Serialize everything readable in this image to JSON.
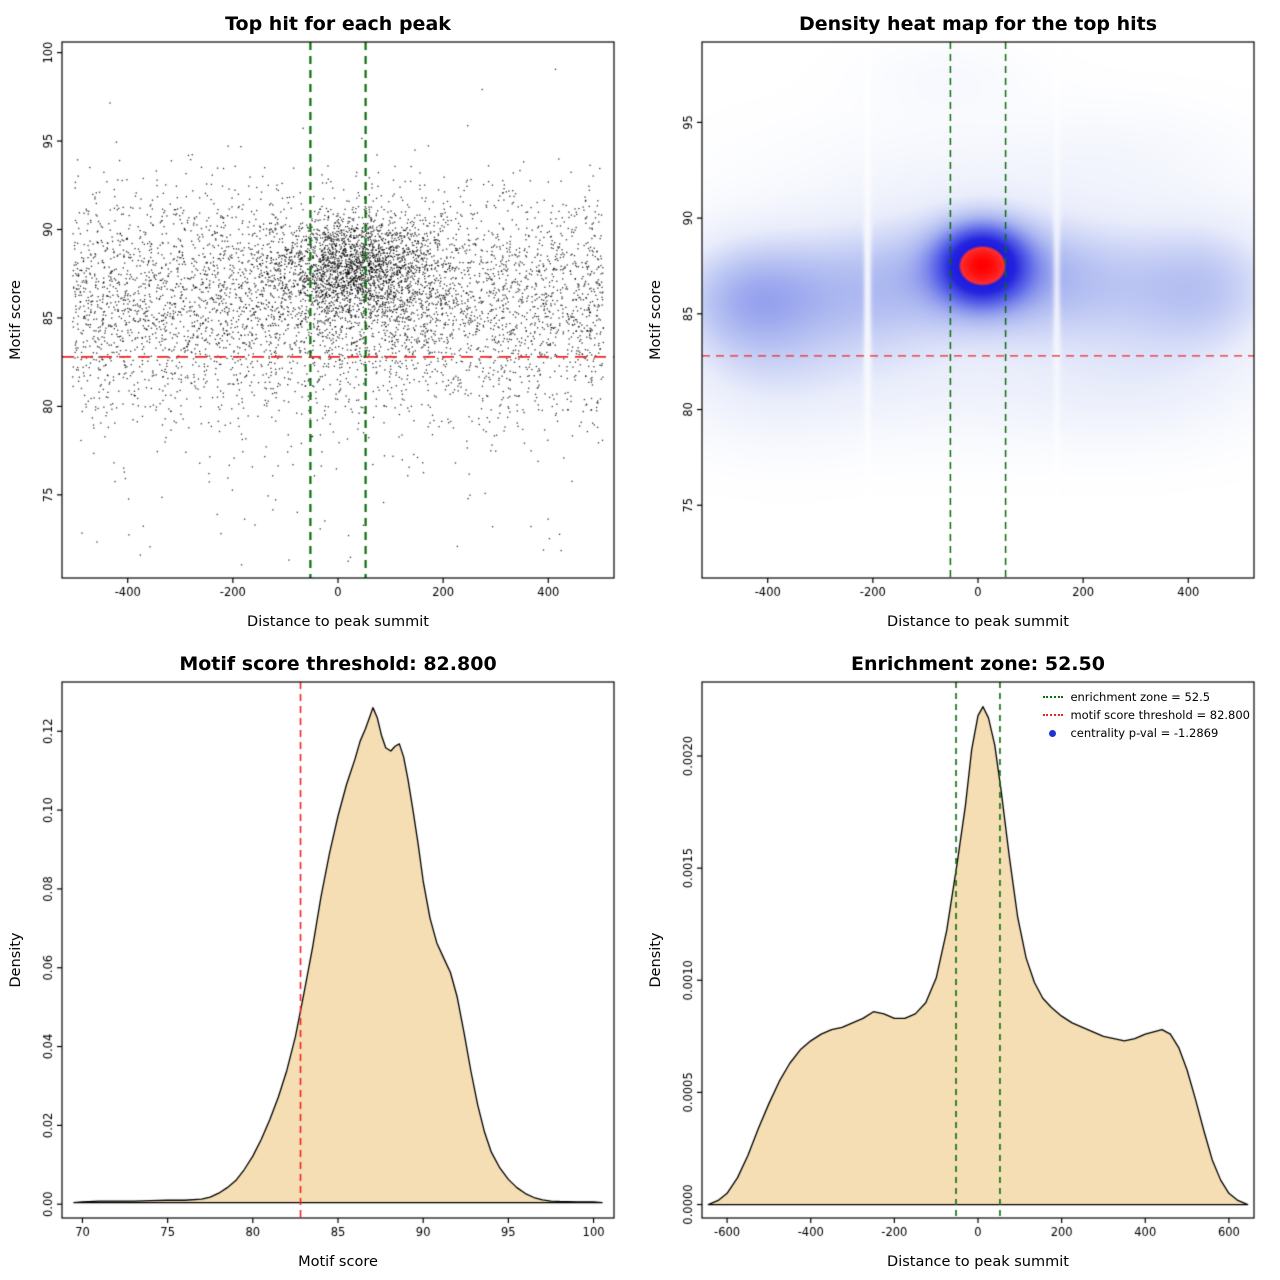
{
  "figure": {
    "background": "#ffffff"
  },
  "chart_data": [
    {
      "type": "scatter",
      "title": "Top hit for each peak",
      "xlabel": "Distance to peak summit",
      "ylabel": "Motif score",
      "xlim": [
        -525,
        525
      ],
      "ylim": [
        70.3,
        100.6
      ],
      "xticks": {
        "values": [
          -400,
          -200,
          0,
          200,
          400
        ],
        "labels": [
          "-400",
          "-200",
          "0",
          "200",
          "400"
        ]
      },
      "yticks": {
        "values": [
          75,
          80,
          85,
          90,
          95,
          100
        ],
        "labels": [
          "75",
          "80",
          "85",
          "90",
          "95",
          "100"
        ]
      },
      "seed": 42,
      "point_color": "#000000",
      "point_size": 1.3,
      "groups": [
        {
          "n": 4200,
          "x": {
            "dist": "uniform",
            "min": -505,
            "max": 505
          },
          "y": {
            "dist": "normal",
            "mean": 86.2,
            "sd": 3.0
          }
        },
        {
          "n": 1400,
          "x": {
            "dist": "normal",
            "mean": 35,
            "sd": 70
          },
          "y": {
            "dist": "normal",
            "mean": 88.0,
            "sd": 1.4
          }
        },
        {
          "n": 800,
          "x": {
            "dist": "normal",
            "mean": 15,
            "sd": 130
          },
          "y": {
            "dist": "normal",
            "mean": 87.2,
            "sd": 2.0
          }
        },
        {
          "n": 420,
          "x": {
            "dist": "uniform",
            "min": -505,
            "max": 505
          },
          "y": {
            "dist": "normal",
            "mean": 81.5,
            "sd": 2.2
          }
        },
        {
          "n": 60,
          "x": {
            "dist": "uniform",
            "min": -490,
            "max": 490
          },
          "y": {
            "dist": "uniform",
            "min": 71,
            "max": 78.5
          }
        }
      ],
      "vlines": [
        {
          "x": -52.5,
          "color": "#0b6e0b",
          "width": 2.2,
          "dash": [
            8,
            6
          ]
        },
        {
          "x": 52.5,
          "color": "#0b6e0b",
          "width": 2.2,
          "dash": [
            8,
            6
          ]
        }
      ],
      "hlines": [
        {
          "y": 82.8,
          "color": "#ee2525",
          "width": 1.8,
          "dash": [
            12,
            7
          ]
        }
      ]
    },
    {
      "type": "heatmap",
      "title": "Density heat map for the top hits",
      "xlabel": "Distance to peak summit",
      "ylabel": "Motif score",
      "xlim": [
        -525,
        525
      ],
      "ylim": [
        71.2,
        99.2
      ],
      "xticks": {
        "values": [
          -400,
          -200,
          0,
          200,
          400
        ],
        "labels": [
          "-400",
          "-200",
          "0",
          "200",
          "400"
        ]
      },
      "yticks": {
        "values": [
          75,
          80,
          85,
          90,
          95
        ],
        "labels": [
          "75",
          "80",
          "85",
          "90",
          "95"
        ]
      },
      "kernels": [
        {
          "w": 1.4,
          "cx": 8,
          "cy": 87.6,
          "sx": 55,
          "sy": 1.35
        },
        {
          "w": 0.55,
          "cx": 5,
          "cy": 87.2,
          "sx": 105,
          "sy": 2.3
        },
        {
          "w": 0.38,
          "cx": -360,
          "cy": 86.0,
          "sx": 120,
          "sy": 2.6
        },
        {
          "w": 0.38,
          "cx": -180,
          "cy": 86.5,
          "sx": 110,
          "sy": 2.8
        },
        {
          "w": 0.38,
          "cx": 170,
          "cy": 86.8,
          "sx": 110,
          "sy": 2.6
        },
        {
          "w": 0.38,
          "cx": 380,
          "cy": 86.3,
          "sx": 120,
          "sy": 2.8
        },
        {
          "w": 0.22,
          "cx": -500,
          "cy": 85.8,
          "sx": 100,
          "sy": 2.4
        },
        {
          "w": 0.22,
          "cx": 480,
          "cy": 86.5,
          "sx": 100,
          "sy": 2.6
        },
        {
          "w": 0.2,
          "cx": -430,
          "cy": 85.5,
          "sx": 90,
          "sy": 2.4
        },
        {
          "w": 0.16,
          "cx": -60,
          "cy": 81.3,
          "sx": 320,
          "sy": 2.3
        },
        {
          "w": 0.12,
          "cx": -400,
          "cy": 80.8,
          "sx": 130,
          "sy": 2.2
        },
        {
          "w": 0.12,
          "cx": 300,
          "cy": 80.8,
          "sx": 160,
          "sy": 2.0
        },
        {
          "w": 0.1,
          "cx": -20,
          "cy": 92.8,
          "sx": 260,
          "sy": 2.0
        },
        {
          "w": 0.09,
          "cx": -60,
          "cy": 97.3,
          "sx": 110,
          "sy": 1.4
        },
        {
          "w": 0.07,
          "cx": 300,
          "cy": 93.5,
          "sx": 150,
          "sy": 1.8
        }
      ],
      "colormap": [
        [
          0.0,
          "#ffffff"
        ],
        [
          0.13,
          "#e9edfb"
        ],
        [
          0.3,
          "#aab6f0"
        ],
        [
          0.5,
          "#5a64e8"
        ],
        [
          0.68,
          "#2525dd"
        ],
        [
          0.8,
          "#1c1ce0"
        ],
        [
          0.84,
          "#ff2e2e"
        ],
        [
          1.0,
          "#ff0000"
        ]
      ],
      "stripes": [
        {
          "x": -210,
          "sd": 5,
          "strength": 0.7
        },
        {
          "x": 150,
          "sd": 5,
          "strength": 0.55
        }
      ],
      "vlines": [
        {
          "x": -52.5,
          "color": "#0b6e0b",
          "width": 1.5,
          "dash": [
            7,
            5
          ]
        },
        {
          "x": 52.5,
          "color": "#0b6e0b",
          "width": 1.5,
          "dash": [
            7,
            5
          ]
        }
      ],
      "hlines": [
        {
          "y": 82.8,
          "color": "#ee2525",
          "width": 1.3,
          "dash": [
            8,
            6
          ]
        }
      ]
    },
    {
      "type": "area",
      "title": "Motif score threshold: 82.800",
      "xlabel": "Motif score",
      "ylabel": "Density",
      "xlim": [
        68.8,
        101.2
      ],
      "ylim": [
        -0.0035,
        0.1325
      ],
      "xticks": {
        "values": [
          70,
          75,
          80,
          85,
          90,
          95,
          100
        ],
        "labels": [
          "70",
          "75",
          "80",
          "85",
          "90",
          "95",
          "100"
        ]
      },
      "yticks": {
        "values": [
          0,
          0.02,
          0.04,
          0.06,
          0.08,
          0.1,
          0.12
        ],
        "labels": [
          "0.00",
          "0.02",
          "0.04",
          "0.06",
          "0.08",
          "0.10",
          "0.12"
        ]
      },
      "fill": "#f5deb3",
      "stroke": "#000000",
      "x": [
        69.5,
        70,
        71,
        72,
        73,
        74,
        75,
        76,
        77,
        77.5,
        78,
        78.5,
        79,
        79.5,
        80,
        80.5,
        81,
        81.5,
        82,
        82.5,
        83,
        83.5,
        84,
        84.5,
        85,
        85.5,
        86,
        86.3,
        86.6,
        86.85,
        87.05,
        87.3,
        87.55,
        87.8,
        88.1,
        88.35,
        88.6,
        88.85,
        89.1,
        89.4,
        89.7,
        90,
        90.4,
        90.8,
        91.2,
        91.6,
        92,
        92.4,
        92.8,
        93.2,
        93.6,
        94,
        94.5,
        95,
        95.5,
        96,
        96.5,
        97,
        97.5,
        98,
        99,
        100,
        100.5
      ],
      "y": [
        0.0004,
        0.0006,
        0.0008,
        0.0008,
        0.0008,
        0.0009,
        0.001,
        0.001,
        0.0013,
        0.0018,
        0.0028,
        0.0042,
        0.006,
        0.0088,
        0.0122,
        0.0165,
        0.0215,
        0.0272,
        0.034,
        0.0425,
        0.0535,
        0.065,
        0.078,
        0.089,
        0.0985,
        0.1065,
        0.113,
        0.1175,
        0.1205,
        0.1235,
        0.126,
        0.1235,
        0.119,
        0.1158,
        0.115,
        0.1162,
        0.1168,
        0.1135,
        0.108,
        0.1,
        0.0915,
        0.082,
        0.0726,
        0.0663,
        0.0625,
        0.0588,
        0.0525,
        0.0435,
        0.0338,
        0.0252,
        0.0183,
        0.0132,
        0.0092,
        0.0063,
        0.0042,
        0.0027,
        0.0017,
        0.0011,
        0.0008,
        0.0007,
        0.0006,
        0.0006,
        0.0004
      ],
      "vlines": [
        {
          "x": 82.8,
          "color": "#ee2525",
          "width": 1.6,
          "dash": [
            7,
            5
          ]
        }
      ]
    },
    {
      "type": "area",
      "title": "Enrichment zone: 52.50",
      "xlabel": "Distance to peak summit",
      "ylabel": "Density",
      "xlim": [
        -660,
        660
      ],
      "ylim": [
        -6e-05,
        0.00233
      ],
      "xticks": {
        "values": [
          -600,
          -400,
          -200,
          0,
          200,
          400,
          600
        ],
        "labels": [
          "-600",
          "-400",
          "-200",
          "0",
          "200",
          "400",
          "600"
        ]
      },
      "yticks": {
        "values": [
          0,
          0.0005,
          0.001,
          0.0015,
          0.002
        ],
        "labels": [
          "0.0000",
          "0.0005",
          "0.0010",
          "0.0015",
          "0.0020"
        ]
      },
      "fill": "#f5deb3",
      "stroke": "#000000",
      "x": [
        -645,
        -620,
        -600,
        -575,
        -550,
        -525,
        -500,
        -475,
        -450,
        -425,
        -400,
        -375,
        -350,
        -325,
        -300,
        -275,
        -250,
        -225,
        -200,
        -175,
        -150,
        -125,
        -100,
        -75,
        -50,
        -30,
        -15,
        0,
        12,
        25,
        40,
        55,
        75,
        95,
        115,
        135,
        155,
        175,
        200,
        225,
        250,
        275,
        300,
        325,
        350,
        375,
        400,
        420,
        440,
        460,
        480,
        500,
        520,
        540,
        560,
        580,
        600,
        620,
        645
      ],
      "y": [
        0,
        2e-05,
        5e-05,
        0.00012,
        0.00022,
        0.00034,
        0.00045,
        0.00055,
        0.00063,
        0.00069,
        0.00073,
        0.00076,
        0.00078,
        0.00079,
        0.00081,
        0.00083,
        0.00086,
        0.00085,
        0.00083,
        0.00083,
        0.00085,
        0.0009,
        0.00101,
        0.00122,
        0.00152,
        0.00178,
        0.00203,
        0.00218,
        0.00222,
        0.00217,
        0.00205,
        0.00185,
        0.00155,
        0.00128,
        0.0011,
        0.00099,
        0.00092,
        0.00088,
        0.00084,
        0.00081,
        0.00079,
        0.00077,
        0.00075,
        0.00074,
        0.00073,
        0.00074,
        0.00076,
        0.00077,
        0.00078,
        0.00076,
        0.0007,
        0.0006,
        0.00047,
        0.00033,
        0.0002,
        0.00011,
        5e-05,
        2e-05,
        0
      ],
      "vlines": [
        {
          "x": -52.5,
          "color": "#0b6e0b",
          "width": 1.6,
          "dash": [
            6,
            5
          ]
        },
        {
          "x": 52.5,
          "color": "#0b6e0b",
          "width": 1.6,
          "dash": [
            6,
            5
          ]
        }
      ],
      "legend": {
        "items": [
          {
            "label": "enrichment zone = 52.5",
            "marker": "dotted-line",
            "color": "#0b6e0b"
          },
          {
            "label": "motif score threshold = 82.800",
            "marker": "dotted-line",
            "color": "#ee2525"
          },
          {
            "label": "centrality p-val = -1.2869",
            "marker": "point",
            "color": "#2233cc"
          }
        ]
      }
    }
  ]
}
